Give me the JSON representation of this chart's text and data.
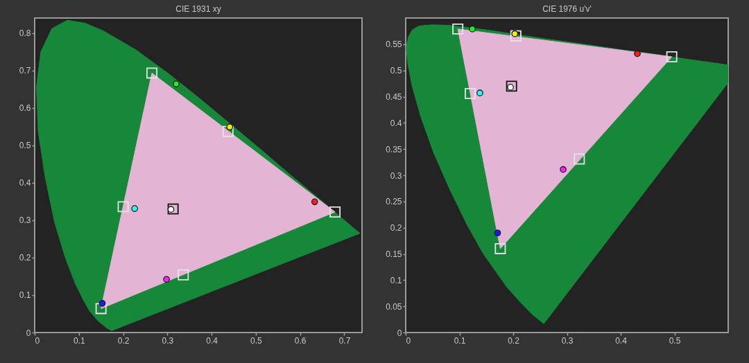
{
  "chart_data": [
    {
      "type": "scatter",
      "title": "CIE 1931 xy",
      "xlim": [
        0,
        0.74
      ],
      "ylim": [
        0,
        0.84
      ],
      "xticks": [
        0,
        0.1,
        0.2,
        0.3,
        0.4,
        0.5,
        0.6,
        0.7
      ],
      "yticks": [
        0,
        0.1,
        0.2,
        0.3,
        0.4,
        0.5,
        0.6,
        0.7,
        0.8
      ],
      "series": [
        {
          "type": "area",
          "color": "#17883a",
          "x": [
            0.174,
            0.164,
            0.157,
            0.144,
            0.124,
            0.11,
            0.091,
            0.069,
            0.045,
            0.024,
            0.008,
            0.004,
            0.014,
            0.039,
            0.074,
            0.114,
            0.155,
            0.23,
            0.302,
            0.373,
            0.444,
            0.513,
            0.575,
            0.627,
            0.666,
            0.692,
            0.719,
            0.735
          ],
          "values": [
            0.005,
            0.011,
            0.018,
            0.03,
            0.058,
            0.087,
            0.133,
            0.201,
            0.295,
            0.413,
            0.538,
            0.655,
            0.75,
            0.812,
            0.834,
            0.826,
            0.806,
            0.754,
            0.692,
            0.625,
            0.555,
            0.487,
            0.424,
            0.373,
            0.334,
            0.308,
            0.281,
            0.265
          ]
        },
        {
          "type": "area",
          "color": "#e4b4d4",
          "x": [
            0.265,
            0.679,
            0.15
          ],
          "values": [
            0.693,
            0.322,
            0.064
          ]
        },
        {
          "marker": "square",
          "x": [
            0.679,
            0.265,
            0.15,
            0.313,
            0.2,
            0.336,
            0.437
          ],
          "values": [
            0.322,
            0.693,
            0.064,
            0.33,
            0.336,
            0.154,
            0.537
          ],
          "colors": [
            "#e6e6e6",
            "#e6e6e6",
            "#e6e6e6",
            "#111111",
            "#e6e6e6",
            "#e6e6e6",
            "#e6e6e6"
          ]
        },
        {
          "marker": "circle",
          "x": [
            0.633,
            0.32,
            0.153,
            0.308,
            0.226,
            0.298,
            0.441
          ],
          "values": [
            0.349,
            0.664,
            0.078,
            0.329,
            0.331,
            0.142,
            0.549
          ],
          "colors": [
            "#ff1a1a",
            "#22ee22",
            "#1a1aff",
            "#ffffff",
            "#22ffff",
            "#ff22ff",
            "#ffee00"
          ]
        }
      ]
    },
    {
      "type": "scatter",
      "title": "CIE 1976 u'v'",
      "xlim": [
        0,
        0.6
      ],
      "ylim": [
        0,
        0.6
      ],
      "xticks": [
        0,
        0.1,
        0.2,
        0.3,
        0.4,
        0.5
      ],
      "yticks": [
        0,
        0.05,
        0.1,
        0.15,
        0.2,
        0.25,
        0.3,
        0.35,
        0.4,
        0.45,
        0.5,
        0.55
      ],
      "series": [
        {
          "type": "area",
          "color": "#17883a",
          "x": [
            0.257,
            0.235,
            0.216,
            0.188,
            0.144,
            0.115,
            0.083,
            0.052,
            0.028,
            0.012,
            0.004,
            0.001,
            0.005,
            0.012,
            0.023,
            0.036,
            0.05,
            0.079,
            0.113,
            0.153,
            0.203,
            0.262,
            0.332,
            0.404,
            0.469,
            0.52,
            0.583,
            0.6,
            0.6
          ],
          "values": [
            0.017,
            0.035,
            0.055,
            0.087,
            0.151,
            0.204,
            0.271,
            0.343,
            0.412,
            0.47,
            0.513,
            0.543,
            0.564,
            0.577,
            0.584,
            0.586,
            0.587,
            0.586,
            0.582,
            0.577,
            0.569,
            0.56,
            0.55,
            0.539,
            0.53,
            0.522,
            0.513,
            0.51,
            0.477
          ]
        },
        {
          "type": "area",
          "color": "#e4b4d4",
          "x": [
            0.097,
            0.495,
            0.176
          ],
          "values": [
            0.579,
            0.526,
            0.16
          ]
        },
        {
          "marker": "square",
          "x": [
            0.495,
            0.097,
            0.176,
            0.197,
            0.12,
            0.323,
            0.205
          ],
          "values": [
            0.526,
            0.579,
            0.16,
            0.47,
            0.456,
            0.331,
            0.566
          ],
          "colors": [
            "#e6e6e6",
            "#e6e6e6",
            "#e6e6e6",
            "#111111",
            "#e6e6e6",
            "#e6e6e6",
            "#e6e6e6"
          ]
        },
        {
          "marker": "circle",
          "x": [
            0.431,
            0.124,
            0.171,
            0.195,
            0.138,
            0.293,
            0.203
          ],
          "values": [
            0.532,
            0.579,
            0.19,
            0.468,
            0.457,
            0.311,
            0.57
          ],
          "colors": [
            "#ff1a1a",
            "#22ee22",
            "#1a1aff",
            "#ffffff",
            "#22ffff",
            "#ff22ff",
            "#ffee00"
          ]
        }
      ]
    }
  ]
}
